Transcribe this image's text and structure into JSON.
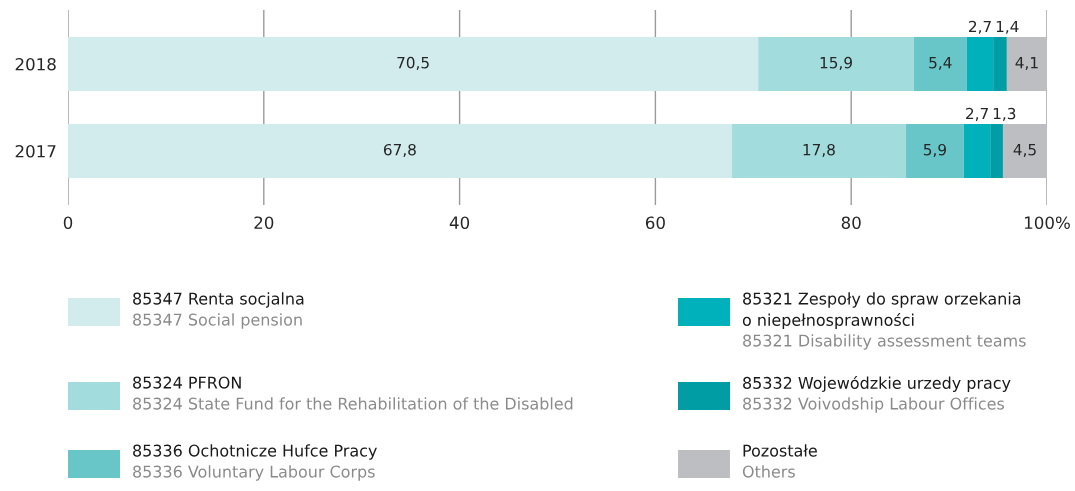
{
  "chart_data": {
    "type": "bar",
    "orientation": "horizontal",
    "stacked": true,
    "categories": [
      "2018",
      "2017"
    ],
    "series": [
      {
        "name": "85347 Renta socjalna\n85347 Social pension",
        "color": "#d2ecee",
        "values": [
          70.5,
          67.8
        ],
        "value_labels": [
          "70,5",
          "67,8"
        ]
      },
      {
        "name": "85324 PFRON\n85324 State Fund for the Rehabilitation of the Disabled",
        "color": "#a3dcdd",
        "values": [
          15.9,
          17.8
        ],
        "value_labels": [
          "15,9",
          "17,8"
        ]
      },
      {
        "name": "85336 Ochotnicze Hufce Pracy\n85336 Voluntary Labour Corps",
        "color": "#68c6c9",
        "values": [
          5.4,
          5.9
        ],
        "value_labels": [
          "5,4",
          "5,9"
        ]
      },
      {
        "name": "85321 Zespoły do spraw orzekania\no niepełnosprawności\n85321 Disability assessment teams",
        "color": "#00b1bb",
        "values": [
          2.7,
          2.7
        ],
        "value_labels": [
          "2,7",
          "2,7"
        ]
      },
      {
        "name": "85332 Wojewódzkie urzedy pracy\n85332 Voivodship Labour Offices",
        "color": "#009da5",
        "values": [
          1.4,
          1.3
        ],
        "value_labels": [
          "1,4",
          "1,3"
        ]
      },
      {
        "name": "Pozostałe\nOthers",
        "color": "#bdbec2",
        "values": [
          4.1,
          4.5
        ],
        "value_labels": [
          "4,1",
          "4,5"
        ]
      }
    ],
    "xlim": [
      0,
      100
    ],
    "xticks": [
      0,
      20,
      40,
      60,
      80,
      {
        "value": 100,
        "label": "100%"
      }
    ],
    "grid": "x",
    "legend": "bottom"
  }
}
